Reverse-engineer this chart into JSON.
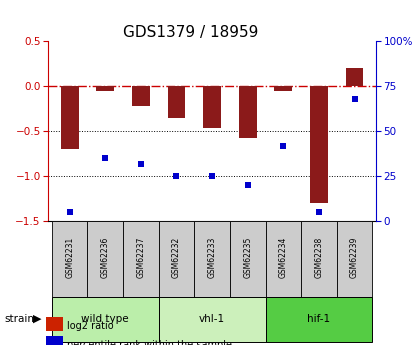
{
  "title": "GDS1379 / 18959",
  "samples": [
    "GSM62231",
    "GSM62236",
    "GSM62237",
    "GSM62232",
    "GSM62233",
    "GSM62235",
    "GSM62234",
    "GSM62238",
    "GSM62239"
  ],
  "log2_ratio": [
    -0.7,
    -0.05,
    -0.22,
    -0.35,
    -0.46,
    -0.57,
    -0.05,
    -1.3,
    0.2
  ],
  "percentile_rank": [
    5,
    35,
    32,
    25,
    25,
    20,
    42,
    5,
    68
  ],
  "bar_color": "#8B1A1A",
  "dot_color": "#0000CC",
  "zero_line_color": "#CC0000",
  "dotted_line_color": "#000000",
  "ylim_left": [
    -1.5,
    0.5
  ],
  "ylim_right": [
    0,
    100
  ],
  "yticks_left": [
    0.5,
    0.0,
    -0.5,
    -1.0,
    -1.5
  ],
  "yticks_right": [
    100,
    75,
    50,
    25,
    0
  ],
  "ytick_labels_right": [
    "100%",
    "75",
    "50",
    "25",
    "0"
  ],
  "groups": [
    {
      "label": "wild type",
      "indices": [
        0,
        1,
        2
      ],
      "color": "#bbeeaa"
    },
    {
      "label": "vhl-1",
      "indices": [
        3,
        4,
        5
      ],
      "color": "#ccf0bb"
    },
    {
      "label": "hif-1",
      "indices": [
        6,
        7,
        8
      ],
      "color": "#55cc44"
    }
  ],
  "strain_label": "strain",
  "legend_items": [
    {
      "label": "log2 ratio",
      "color": "#CC2200"
    },
    {
      "label": "percentile rank within the sample",
      "color": "#0000CC"
    }
  ],
  "bg_color": "#ffffff",
  "title_fontsize": 11,
  "tick_fontsize": 7.5,
  "bar_width": 0.5
}
